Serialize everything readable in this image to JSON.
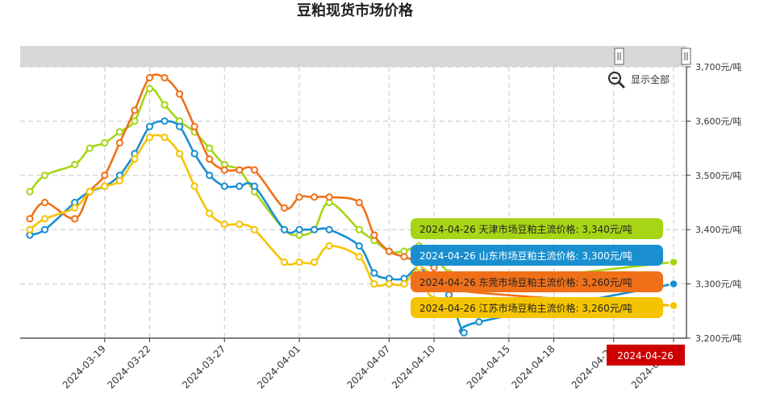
{
  "chart_data": {
    "type": "line",
    "title": "豆粕现货市场价格",
    "xlabel": "",
    "ylabel": "",
    "y_unit": "元/吨",
    "ylim": [
      3200,
      3700
    ],
    "yticks": [
      3200,
      3300,
      3400,
      3500,
      3600,
      3700
    ],
    "ytick_labels": [
      "3,200元/吨",
      "3,300元/吨",
      "3,400元/吨",
      "3,500元/吨",
      "3,600元/吨",
      "3,700元/吨"
    ],
    "xlim": [
      "2024-03-14",
      "2024-04-26"
    ],
    "xtick_labels": [
      "2024-03-19",
      "2024-03-22",
      "2024-03-27",
      "2024-04-01",
      "2024-04-07",
      "2024-04-10",
      "2024-04-15",
      "2024-04-18",
      "2024-04-22",
      "2024-04-26"
    ],
    "grid": true,
    "legend": "none",
    "series": [
      {
        "name": "天津市场豆粕主流价格",
        "color": "#a6d517",
        "points": [
          [
            "2024-03-14",
            3470
          ],
          [
            "2024-03-15",
            3500
          ],
          [
            "2024-03-17",
            3520
          ],
          [
            "2024-03-18",
            3550
          ],
          [
            "2024-03-19",
            3560
          ],
          [
            "2024-03-20",
            3580
          ],
          [
            "2024-03-21",
            3600
          ],
          [
            "2024-03-22",
            3660
          ],
          [
            "2024-03-23",
            3630
          ],
          [
            "2024-03-24",
            3600
          ],
          [
            "2024-03-25",
            3580
          ],
          [
            "2024-03-26",
            3550
          ],
          [
            "2024-03-27",
            3520
          ],
          [
            "2024-03-28",
            3510
          ],
          [
            "2024-03-29",
            3470
          ],
          [
            "2024-03-31",
            3400
          ],
          [
            "2024-04-01",
            3390
          ],
          [
            "2024-04-02",
            3400
          ],
          [
            "2024-04-03",
            3450
          ],
          [
            "2024-04-05",
            3400
          ],
          [
            "2024-04-06",
            3380
          ],
          [
            "2024-04-07",
            3360
          ],
          [
            "2024-04-08",
            3360
          ],
          [
            "2024-04-09",
            3370
          ],
          [
            "2024-04-10",
            3350
          ],
          [
            "2024-04-11",
            3320
          ],
          [
            "2024-04-12",
            3300
          ],
          [
            "2024-04-26",
            3340
          ]
        ]
      },
      {
        "name": "山东市场豆粕主流价格",
        "color": "#1a8fd0",
        "points": [
          [
            "2024-03-14",
            3390
          ],
          [
            "2024-03-15",
            3400
          ],
          [
            "2024-03-17",
            3450
          ],
          [
            "2024-03-18",
            3470
          ],
          [
            "2024-03-19",
            3480
          ],
          [
            "2024-03-20",
            3500
          ],
          [
            "2024-03-21",
            3540
          ],
          [
            "2024-03-22",
            3590
          ],
          [
            "2024-03-23",
            3600
          ],
          [
            "2024-03-24",
            3590
          ],
          [
            "2024-03-25",
            3540
          ],
          [
            "2024-03-26",
            3500
          ],
          [
            "2024-03-27",
            3480
          ],
          [
            "2024-03-28",
            3480
          ],
          [
            "2024-03-29",
            3480
          ],
          [
            "2024-03-31",
            3400
          ],
          [
            "2024-04-01",
            3400
          ],
          [
            "2024-04-02",
            3400
          ],
          [
            "2024-04-03",
            3400
          ],
          [
            "2024-04-05",
            3370
          ],
          [
            "2024-04-06",
            3320
          ],
          [
            "2024-04-07",
            3310
          ],
          [
            "2024-04-08",
            3310
          ],
          [
            "2024-04-09",
            3330
          ],
          [
            "2024-04-10",
            3300
          ],
          [
            "2024-04-11",
            3280
          ],
          [
            "2024-04-12",
            3210
          ],
          [
            "2024-04-13",
            3230
          ],
          [
            "2024-04-26",
            3300
          ]
        ]
      },
      {
        "name": "东莞市场豆粕主流价格",
        "color": "#f0701a",
        "points": [
          [
            "2024-03-14",
            3420
          ],
          [
            "2024-03-15",
            3450
          ],
          [
            "2024-03-17",
            3420
          ],
          [
            "2024-03-18",
            3470
          ],
          [
            "2024-03-19",
            3500
          ],
          [
            "2024-03-20",
            3560
          ],
          [
            "2024-03-21",
            3620
          ],
          [
            "2024-03-22",
            3680
          ],
          [
            "2024-03-23",
            3680
          ],
          [
            "2024-03-24",
            3650
          ],
          [
            "2024-03-25",
            3590
          ],
          [
            "2024-03-26",
            3530
          ],
          [
            "2024-03-27",
            3510
          ],
          [
            "2024-03-28",
            3510
          ],
          [
            "2024-03-29",
            3510
          ],
          [
            "2024-03-31",
            3440
          ],
          [
            "2024-04-01",
            3460
          ],
          [
            "2024-04-02",
            3460
          ],
          [
            "2024-04-03",
            3460
          ],
          [
            "2024-04-05",
            3450
          ],
          [
            "2024-04-06",
            3390
          ],
          [
            "2024-04-07",
            3360
          ],
          [
            "2024-04-08",
            3350
          ],
          [
            "2024-04-09",
            3340
          ],
          [
            "2024-04-10",
            3330
          ],
          [
            "2024-04-11",
            3290
          ],
          [
            "2024-04-26",
            3260
          ]
        ]
      },
      {
        "name": "江苏市场豆粕主流价格",
        "color": "#f5c400",
        "points": [
          [
            "2024-03-14",
            3400
          ],
          [
            "2024-03-15",
            3420
          ],
          [
            "2024-03-17",
            3440
          ],
          [
            "2024-03-18",
            3470
          ],
          [
            "2024-03-19",
            3480
          ],
          [
            "2024-03-20",
            3490
          ],
          [
            "2024-03-21",
            3530
          ],
          [
            "2024-03-22",
            3570
          ],
          [
            "2024-03-23",
            3570
          ],
          [
            "2024-03-24",
            3540
          ],
          [
            "2024-03-25",
            3480
          ],
          [
            "2024-03-26",
            3430
          ],
          [
            "2024-03-27",
            3410
          ],
          [
            "2024-03-28",
            3410
          ],
          [
            "2024-03-29",
            3400
          ],
          [
            "2024-03-31",
            3340
          ],
          [
            "2024-04-01",
            3340
          ],
          [
            "2024-04-02",
            3340
          ],
          [
            "2024-04-03",
            3370
          ],
          [
            "2024-04-05",
            3350
          ],
          [
            "2024-04-06",
            3300
          ],
          [
            "2024-04-07",
            3300
          ],
          [
            "2024-04-08",
            3300
          ],
          [
            "2024-04-09",
            3330
          ],
          [
            "2024-04-10",
            3310
          ],
          [
            "2024-04-11",
            3270
          ],
          [
            "2024-04-26",
            3260
          ]
        ]
      }
    ],
    "tooltip": {
      "date": "2024-04-26",
      "rows": [
        {
          "text": "2024-04-26 天津市场豆粕主流价格: 3,340元/吨",
          "color": "#a6d517",
          "text_color": "#222222"
        },
        {
          "text": "2024-04-26 山东市场豆粕主流价格: 3,300元/吨",
          "color": "#1a8fd0",
          "text_color": "#ffffff"
        },
        {
          "text": "2024-04-26 东莞市场豆粕主流价格: 3,260元/吨",
          "color": "#f0701a",
          "text_color": "#222222"
        },
        {
          "text": "2024-04-26 江苏市场豆粕主流价格: 3,260元/吨",
          "color": "#f5c400",
          "text_color": "#222222"
        }
      ],
      "x_label_color": "#cc0000"
    }
  },
  "controls": {
    "reset_zoom_label": "显示全部",
    "reset_zoom_icon": "zoom-out-icon"
  }
}
